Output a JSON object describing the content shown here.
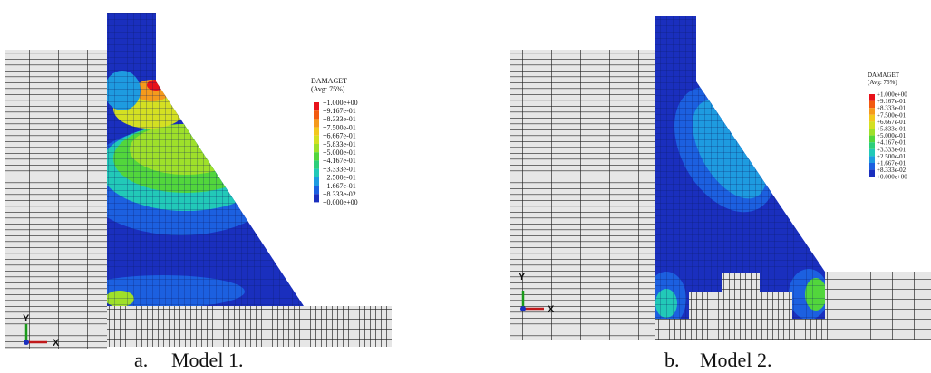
{
  "panels": [
    {
      "label": "a.",
      "caption": "Model 1.",
      "triad": {
        "y": "Y",
        "x": "X"
      },
      "legend": {
        "title": "DAMAGET",
        "subtitle": "(Avg: 75%)",
        "levels": [
          "+1.000e+00",
          "+9.167e-01",
          "+8.333e-01",
          "+7.500e-01",
          "+6.667e-01",
          "+5.833e-01",
          "+5.000e-01",
          "+4.167e-01",
          "+3.333e-01",
          "+2.500e-01",
          "+1.667e-01",
          "+8.333e-02",
          "+0.000e+00"
        ],
        "colors": [
          "#e8121a",
          "#f25a10",
          "#f59a1c",
          "#f2c81e",
          "#d4e022",
          "#9ee02a",
          "#52d63c",
          "#2ccf7a",
          "#22c9b8",
          "#1e9be0",
          "#1c60e0",
          "#1a2fbe"
        ]
      }
    },
    {
      "label": "b.",
      "caption": "Model 2.",
      "triad": {
        "y": "Y",
        "x": "X"
      },
      "legend": {
        "title": "DAMAGET",
        "subtitle": "(Avg: 75%)",
        "levels": [
          "+1.000e+00",
          "+9.167e-01",
          "+8.333e-01",
          "+7.500e-01",
          "+6.667e-01",
          "+5.833e-01",
          "+5.000e-01",
          "+4.167e-01",
          "+3.333e-01",
          "+2.500e-01",
          "+1.667e-01",
          "+8.333e-02",
          "+0.000e+00"
        ],
        "colors": [
          "#e8121a",
          "#f25a10",
          "#f59a1c",
          "#f2c81e",
          "#d4e022",
          "#9ee02a",
          "#52d63c",
          "#2ccf7a",
          "#22c9b8",
          "#1e9be0",
          "#1c60e0",
          "#1a2fbe"
        ]
      }
    }
  ]
}
